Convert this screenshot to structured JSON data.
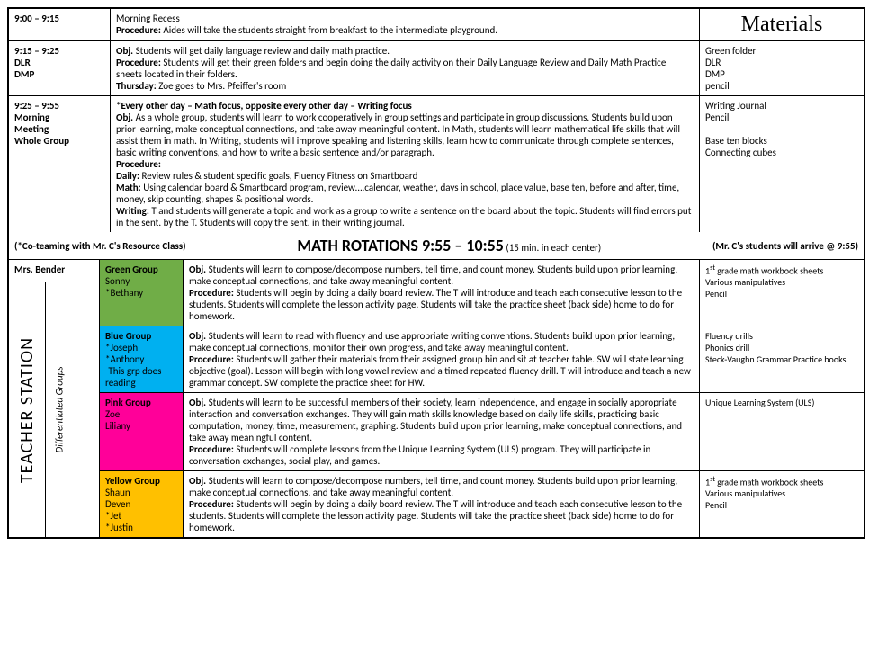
{
  "materials_header": "Materials",
  "rows": [
    {
      "time": "9:00 – 9:15",
      "time_lines": [],
      "desc": "Morning Recess\nProcedure: Aides will take the students straight from breakfast to the intermediate playground.",
      "materials": ""
    },
    {
      "time": "9:15 – 9:25",
      "time_lines": [
        "DLR",
        "DMP"
      ],
      "desc": " Obj. Students will get daily language review and daily math practice.\nProcedure: Students will get their green folders and begin doing the daily activity on their Daily Language Review and Daily Math Practice sheets located in their folders.\nThursday: Zoe goes to Mrs. Pfeiffer's room",
      "materials": "Green folder\nDLR\nDMP\npencil"
    },
    {
      "time": "9:25 – 9:55",
      "time_lines": [
        "Morning",
        "Meeting",
        "Whole Group"
      ],
      "desc": "*Every other day – Math focus, opposite every other day – Writing focus\nObj. As a whole group, students will learn to work cooperatively in group settings and participate in group discussions. Students build upon prior learning, make conceptual connections, and take away meaningful content. In Math, students will learn mathematical life skills that will assist them in math.  In Writing, students will improve speaking and listening skills, learn how to communicate through complete sentences, basic writing conventions, and how to write a basic sentence and/or paragraph.\nProcedure:\nDaily: Review rules & student specific goals, Fluency Fitness on Smartboard\nMath: Using calendar board & Smartboard program, review….calendar, weather, days in school, place value, base ten, before and after, time, money, skip counting, shapes & positional words.\nWriting: T and students will generate a topic and work as a group to write a sentence on the board about the topic. Students will find errors put in the sent. by the T. Students will copy the sent. in their writing journal.",
      "materials": "Writing Journal\nPencil\n\nBase ten blocks\nConnecting cubes"
    }
  ],
  "rotations": {
    "coteam": "(*Co-teaming with Mr. C's Resource Class)",
    "title": "MATH ROTATIONS 9:55 – 10:55",
    "subtitle": "(15 min. in each center)",
    "arrive": "(Mr. C's students will arrive @ 9:55)"
  },
  "bender": "Mrs. Bender",
  "teacher_station": "TEACHER STATION",
  "diff_groups": "Differentiated Groups",
  "groups": [
    {
      "name": "Green Group",
      "students": "Sonny\n*Bethany",
      "color": "#70ad47",
      "desc": "Obj. Students will learn to compose/decompose numbers, tell time, and count money. Students build upon prior learning, make conceptual connections, and take away meaningful content.\nProcedure:  Students will begin by doing a daily board review. The T will introduce and teach each consecutive lesson to the students. Students will complete the lesson activity page. Students will take the practice sheet (back side) home to do for homework.",
      "materials": "1st grade math workbook sheets\nVarious manipulatives\nPencil"
    },
    {
      "name": "Blue Group",
      "students": "*Joseph\n*Anthony\n-This grp does reading",
      "color": "#00b0f0",
      "desc": "Obj. Students will learn to read with fluency and  use appropriate writing conventions. Students build upon prior learning, make conceptual connections, monitor their own progress, and take away meaningful content.\nProcedure:  Students will gather their materials from their assigned group bin and sit at teacher table. SW will state learning objective (goal).  Lesson will begin with long vowel review and a timed repeated fluency drill. T will introduce and teach a new grammar concept. SW complete the practice sheet for HW.",
      "materials": "Fluency drills\nPhonics drill\nSteck-Vaughn Grammar Practice books"
    },
    {
      "name": "Pink Group",
      "students": "Zoe\nLiliany",
      "color": "#ff0099",
      "desc": "Obj. Students will learn to be successful members of their society, learn independence, and engage in socially appropriate interaction and conversation exchanges. They will gain math skills knowledge based on daily life skills, practicing basic computation, money, time, measurement, graphing. Students build upon prior learning, make conceptual connections, and take away meaningful content.\nProcedure:  Students will complete lessons from the Unique Learning System (ULS) program. They will participate in conversation exchanges, social play, and games.",
      "materials": "Unique Learning System (ULS)"
    },
    {
      "name": "Yellow Group",
      "students": "Shaun\nDeven\n*Jet\n*Justin",
      "color": "#ffc000",
      "desc": "Obj. Students will learn to compose/decompose numbers, tell time, and count money. Students build upon prior learning, make conceptual connections, and take away meaningful content.\nProcedure:  Students will begin by doing a daily board review. The T will introduce and teach each consecutive lesson to the students. Students will complete the lesson activity page. Students will take the practice sheet (back side) home to do for homework.",
      "materials": "1st grade math workbook sheets\nVarious manipulatives\nPencil"
    }
  ]
}
